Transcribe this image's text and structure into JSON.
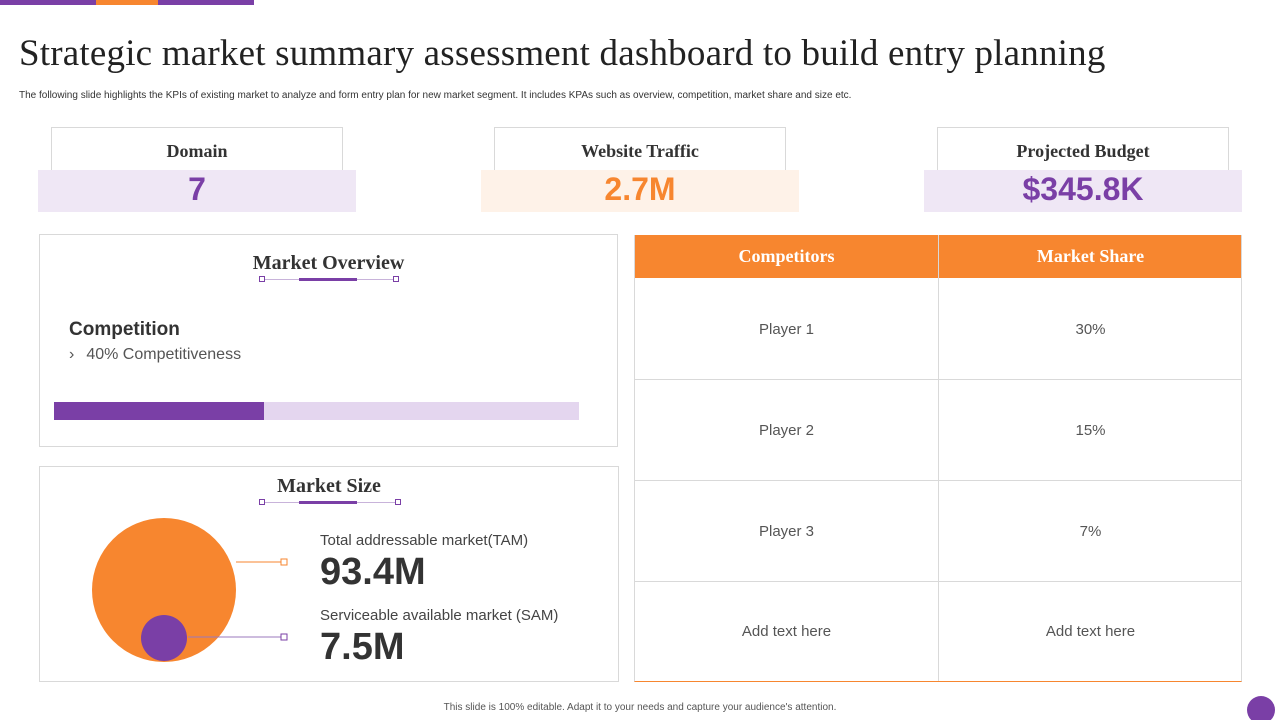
{
  "header": {
    "title": "Strategic market summary assessment dashboard to build entry planning",
    "subtitle": "The following slide highlights the KPIs  of existing market to analyze and form entry plan  for new market segment. It includes KPAs such as overview, competition, market share and size etc."
  },
  "colors": {
    "purple": "#7a3fa6",
    "orange": "#f7862f",
    "light_purple": "#e4d6ef"
  },
  "kpis": [
    {
      "label": "Domain",
      "value": "7"
    },
    {
      "label": "Website Traffic",
      "value": "2.7M"
    },
    {
      "label": "Projected Budget",
      "value": "$345.8K"
    }
  ],
  "market_overview": {
    "title": "Market  Overview",
    "competition_heading": "Competition",
    "competition_text": "40% Competitiveness",
    "competitiveness_percent": 40
  },
  "market_size": {
    "title": "Market  Size",
    "tam_label": "Total addressable market(TAM)",
    "tam_value": "93.4M",
    "sam_label": "Serviceable available market (SAM)",
    "sam_value": "7.5M"
  },
  "competitor_table": {
    "headers": [
      "Competitors",
      "Market Share"
    ],
    "rows": [
      [
        "Player 1",
        "30%"
      ],
      [
        "Player 2",
        "15%"
      ],
      [
        "Player 3",
        "7%"
      ],
      [
        "Add text here",
        "Add text here"
      ]
    ]
  },
  "footer": {
    "text": "This slide is 100% editable.  Adapt it to your needs and capture your audience's attention."
  }
}
